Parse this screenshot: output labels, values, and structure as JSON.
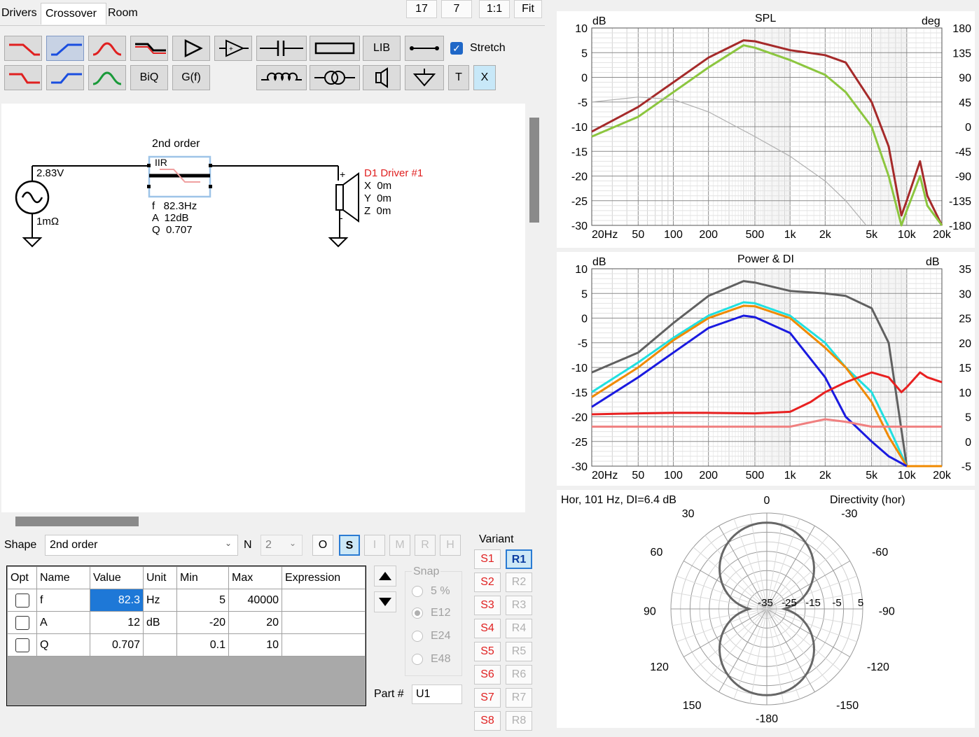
{
  "tabs": [
    "Drivers",
    "Crossover",
    "Room"
  ],
  "top_buttons": [
    "17",
    "7",
    "1:1",
    "Fit"
  ],
  "toolbar": {
    "lib": "LIB",
    "biq": "BiQ",
    "gf": "G(f)",
    "t": "T",
    "x": "X",
    "stretch_label": "Stretch"
  },
  "schematic": {
    "source_voltage": "2.83V",
    "source_resistance": "1mΩ",
    "block_title": "2nd order",
    "block_type": "IIR",
    "block_f": "f   82.3Hz",
    "block_a": "A  12dB",
    "block_q": "Q  0.707",
    "driver_name": "D1 Driver #1",
    "driver_x": "X  0m",
    "driver_y": "Y  0m",
    "driver_z": "Z  0m",
    "plus": "+",
    "minus": "-"
  },
  "shape": {
    "label": "Shape",
    "value": "2nd order",
    "n_label": "N",
    "n_value": "2"
  },
  "mode_buttons": [
    "O",
    "S",
    "I",
    "M",
    "R",
    "H"
  ],
  "params": {
    "headers": [
      "Opt",
      "Name",
      "Value",
      "Unit",
      "Min",
      "Max",
      "Expression"
    ],
    "rows": [
      {
        "name": "f",
        "value": "82.3",
        "unit": "Hz",
        "min": "5",
        "max": "40000"
      },
      {
        "name": "A",
        "value": "12",
        "unit": "dB",
        "min": "-20",
        "max": "20"
      },
      {
        "name": "Q",
        "value": "0.707",
        "unit": "",
        "min": "0.1",
        "max": "10"
      }
    ]
  },
  "snap": {
    "title": "Snap",
    "options": [
      "5 %",
      "E12",
      "E24",
      "E48"
    ]
  },
  "part": {
    "label": "Part #",
    "value": "U1"
  },
  "variant": {
    "title": "Variant",
    "s": [
      "S1",
      "S2",
      "S3",
      "S4",
      "S5",
      "S6",
      "S7",
      "S8"
    ],
    "r": [
      "R1",
      "R2",
      "R3",
      "R4",
      "R5",
      "R6",
      "R7",
      "R8"
    ]
  },
  "spl_chart": {
    "title": "SPL",
    "left_unit": "dB",
    "right_unit": "deg",
    "y_ticks": [
      "10",
      "5",
      "0",
      "-5",
      "-10",
      "-15",
      "-20",
      "-25",
      "-30"
    ],
    "right_ticks": [
      "180",
      "135",
      "90",
      "45",
      "0",
      "-45",
      "-90",
      "-135",
      "-180"
    ],
    "x_ticks": [
      "20Hz",
      "50",
      "100",
      "200",
      "500",
      "1k",
      "2k",
      "5k",
      "10k",
      "20k"
    ]
  },
  "power_chart": {
    "title": "Power & DI",
    "left_unit": "dB",
    "right_unit": "dB",
    "y_ticks": [
      "10",
      "5",
      "0",
      "-5",
      "-10",
      "-15",
      "-20",
      "-25",
      "-30"
    ],
    "right_ticks": [
      "35",
      "30",
      "25",
      "20",
      "15",
      "10",
      "5",
      "0",
      "-5"
    ],
    "x_ticks": [
      "20Hz",
      "50",
      "100",
      "200",
      "500",
      "1k",
      "2k",
      "5k",
      "10k",
      "20k"
    ]
  },
  "polar": {
    "info": "Hor, 101 Hz, DI=6.4 dB",
    "title": "Directivity (hor)",
    "angles": [
      "0",
      "30",
      "-30",
      "60",
      "-60",
      "90",
      "-90",
      "120",
      "-120",
      "150",
      "-150",
      "-180"
    ],
    "rings": [
      "-35",
      "-25",
      "-15",
      "-5",
      "5"
    ]
  },
  "chart_data": [
    {
      "type": "line",
      "title": "SPL",
      "x_scale": "log",
      "xlim": [
        20,
        20000
      ],
      "ylim": [
        -30,
        10
      ],
      "y2lim": [
        -180,
        180
      ],
      "series": [
        {
          "color": "#a52a2a",
          "x": [
            20,
            50,
            100,
            200,
            400,
            500,
            1000,
            2000,
            3000,
            5000,
            7000,
            9000,
            10000,
            13000,
            15000,
            20000
          ],
          "y": [
            -11,
            -6,
            -1,
            4,
            7.5,
            7.3,
            5.5,
            4.5,
            3,
            -5,
            -14,
            -28,
            -25,
            -17,
            -24,
            -30
          ]
        },
        {
          "color": "#8cc63f",
          "x": [
            20,
            50,
            100,
            200,
            400,
            500,
            1000,
            2000,
            3000,
            5000,
            7000,
            9000,
            10000,
            13000,
            15000,
            20000
          ],
          "y": [
            -12,
            -8,
            -3,
            2,
            6.5,
            6,
            3.5,
            0.5,
            -3,
            -10,
            -20,
            -30,
            -27,
            -20,
            -26,
            -30
          ]
        },
        {
          "color": "#b0b0b0",
          "x": [
            20,
            50,
            100,
            200,
            500,
            1000,
            2000,
            3000,
            4500
          ],
          "y": [
            -5,
            -4,
            -4.5,
            -7,
            -12,
            -16,
            -21,
            -25,
            -30
          ]
        }
      ]
    },
    {
      "type": "line",
      "title": "Power & DI",
      "x_scale": "log",
      "xlim": [
        20,
        20000
      ],
      "ylim": [
        -30,
        10
      ],
      "y2lim": [
        -5,
        35
      ],
      "series": [
        {
          "color": "#606060",
          "x": [
            20,
            50,
            100,
            200,
            400,
            500,
            1000,
            2000,
            3000,
            5000,
            7000,
            10000,
            20000
          ],
          "y": [
            -11,
            -7,
            -1,
            4.5,
            7.5,
            7.2,
            5.5,
            5,
            4.5,
            2,
            -5,
            -30,
            -30
          ]
        },
        {
          "color": "#20e0e0",
          "x": [
            20,
            50,
            100,
            200,
            400,
            500,
            1000,
            2000,
            3000,
            5000,
            7000,
            10000,
            20000
          ],
          "y": [
            -15,
            -9,
            -4,
            0.5,
            3.2,
            3,
            0.5,
            -5,
            -10,
            -15,
            -22,
            -30,
            -30
          ]
        },
        {
          "color": "#f08a00",
          "x": [
            20,
            50,
            100,
            200,
            400,
            500,
            1000,
            2000,
            3000,
            5000,
            7000,
            10000,
            20000
          ],
          "y": [
            -16,
            -10,
            -4.5,
            0,
            2.5,
            2.4,
            0,
            -6,
            -10,
            -17,
            -24,
            -30,
            -30
          ]
        },
        {
          "color": "#1a1ae0",
          "x": [
            20,
            50,
            100,
            200,
            400,
            500,
            1000,
            2000,
            3000,
            5000,
            7000,
            10000
          ],
          "y": [
            -18,
            -12,
            -7,
            -2,
            0.5,
            0.2,
            -3,
            -12,
            -20,
            -25,
            -28,
            -30
          ]
        },
        {
          "color": "#e82020",
          "x": [
            20,
            50,
            100,
            200,
            500,
            1000,
            1500,
            2000,
            3000,
            5000,
            7000,
            9000,
            10000,
            13000,
            15000,
            20000
          ],
          "y": [
            -19.5,
            -19.3,
            -19.2,
            -19.2,
            -19.3,
            -19,
            -17,
            -15,
            -13,
            -11,
            -12,
            -15,
            -14,
            -11,
            -12,
            -13
          ]
        },
        {
          "color": "#f08080",
          "x": [
            20,
            50,
            100,
            500,
            1000,
            2000,
            3000,
            5000,
            10000,
            20000
          ],
          "y": [
            -22,
            -22,
            -22,
            -22,
            -22,
            -20.5,
            -21,
            -22,
            -22,
            -22
          ]
        }
      ]
    }
  ]
}
